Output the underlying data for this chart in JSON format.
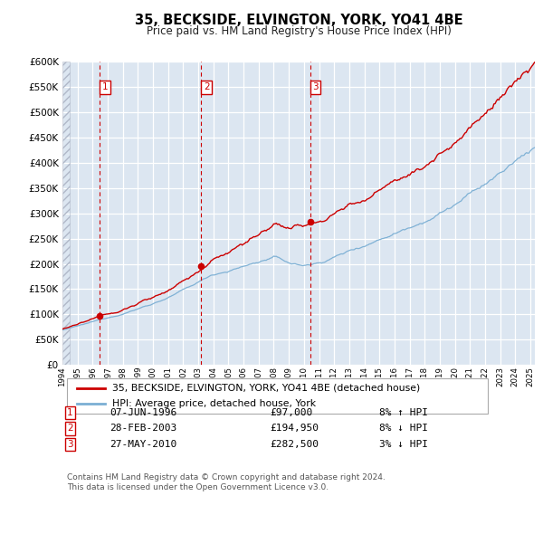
{
  "title": "35, BECKSIDE, ELVINGTON, YORK, YO41 4BE",
  "subtitle": "Price paid vs. HM Land Registry's House Price Index (HPI)",
  "plot_bg_color": "#dce6f1",
  "sale_color": "#cc0000",
  "hpi_color": "#7bafd4",
  "sale_label": "35, BECKSIDE, ELVINGTON, YORK, YO41 4BE (detached house)",
  "hpi_label": "HPI: Average price, detached house, York",
  "ylim": [
    0,
    600000
  ],
  "yticks": [
    0,
    50000,
    100000,
    150000,
    200000,
    250000,
    300000,
    350000,
    400000,
    450000,
    500000,
    550000,
    600000
  ],
  "transactions": [
    {
      "num": 1,
      "date": "07-JUN-1996",
      "price": 97000,
      "year": 1996.44,
      "pct": "8%",
      "dir": "↑",
      "label": "1"
    },
    {
      "num": 2,
      "date": "28-FEB-2003",
      "price": 194950,
      "year": 2003.16,
      "pct": "8%",
      "dir": "↓",
      "label": "2"
    },
    {
      "num": 3,
      "date": "27-MAY-2010",
      "price": 282500,
      "year": 2010.4,
      "pct": "3%",
      "dir": "↓",
      "label": "3"
    }
  ],
  "year_start": 1994,
  "year_end": 2025,
  "footer": "Contains HM Land Registry data © Crown copyright and database right 2024.\nThis data is licensed under the Open Government Licence v3.0."
}
